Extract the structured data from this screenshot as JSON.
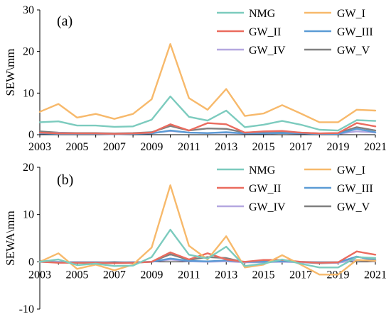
{
  "chart_data": [
    {
      "type": "line",
      "panel_label": "(a)",
      "ylabel": "SEW\\mm",
      "xlabel": "",
      "ylim": [
        0,
        30
      ],
      "yticks": [
        0,
        10,
        20,
        30
      ],
      "xticks": [
        2003,
        2005,
        2007,
        2009,
        2011,
        2013,
        2015,
        2017,
        2019,
        2021
      ],
      "legend_position": "top-right",
      "x": [
        2003,
        2004,
        2005,
        2006,
        2007,
        2008,
        2009,
        2010,
        2011,
        2012,
        2013,
        2014,
        2015,
        2016,
        2017,
        2018,
        2019,
        2020,
        2021
      ],
      "series": [
        {
          "name": "NMG",
          "color": "#7ccbbe",
          "values": [
            3.0,
            3.2,
            2.2,
            2.2,
            1.9,
            2.0,
            3.6,
            9.2,
            4.3,
            3.4,
            5.8,
            1.8,
            2.4,
            3.3,
            2.4,
            1.2,
            1.0,
            3.5,
            3.3
          ]
        },
        {
          "name": "GW_I",
          "color": "#f7b96b",
          "values": [
            5.5,
            7.4,
            4.1,
            5.0,
            3.8,
            5.0,
            8.5,
            21.8,
            8.8,
            6.0,
            11.0,
            4.5,
            5.1,
            7.1,
            5.1,
            3.0,
            3.0,
            6.0,
            5.8
          ]
        },
        {
          "name": "GW_II",
          "color": "#ea6b5e",
          "values": [
            0.5,
            0.3,
            0.3,
            0.3,
            0.2,
            0.3,
            0.5,
            2.5,
            1.0,
            2.8,
            2.5,
            0.5,
            0.8,
            0.9,
            0.5,
            0.3,
            0.4,
            2.8,
            2.0
          ]
        },
        {
          "name": "GW_III",
          "color": "#5b9bd5",
          "values": [
            0.3,
            0.2,
            0.2,
            0.2,
            0.1,
            0.2,
            0.3,
            1.0,
            0.5,
            0.4,
            0.6,
            0.3,
            0.3,
            0.4,
            0.3,
            0.2,
            0.2,
            1.4,
            0.6
          ]
        },
        {
          "name": "GW_IV",
          "color": "#b4a7e0",
          "values": [
            0.4,
            0.4,
            0.3,
            0.3,
            0.2,
            0.3,
            0.4,
            0.9,
            0.5,
            0.4,
            0.5,
            0.3,
            0.3,
            0.4,
            0.3,
            0.2,
            0.2,
            0.8,
            0.5
          ]
        },
        {
          "name": "GW_V",
          "color": "#808080",
          "values": [
            0.8,
            0.5,
            0.4,
            0.4,
            0.3,
            0.4,
            0.6,
            2.1,
            1.0,
            1.5,
            1.4,
            0.5,
            0.7,
            0.6,
            0.5,
            0.3,
            0.4,
            1.8,
            1.0
          ]
        }
      ]
    },
    {
      "type": "line",
      "panel_label": "(b)",
      "ylabel": "SEWA\\mm",
      "xlabel": "",
      "ylim": [
        -10,
        20
      ],
      "yticks": [
        -10,
        0,
        10,
        20
      ],
      "xticks": [
        2003,
        2005,
        2007,
        2009,
        2011,
        2013,
        2015,
        2017,
        2019,
        2021
      ],
      "legend_position": "top-right",
      "x": [
        2003,
        2004,
        2005,
        2006,
        2007,
        2008,
        2009,
        2010,
        2011,
        2012,
        2013,
        2014,
        2015,
        2016,
        2017,
        2018,
        2019,
        2020,
        2021
      ],
      "series": [
        {
          "name": "NMG",
          "color": "#7ccbbe",
          "values": [
            0.0,
            0.5,
            -0.7,
            -0.4,
            -0.9,
            -0.8,
            1.0,
            6.8,
            1.5,
            0.7,
            3.2,
            -0.9,
            -0.4,
            0.5,
            -0.4,
            -1.2,
            -1.2,
            1.0,
            0.8
          ]
        },
        {
          "name": "GW_I",
          "color": "#f7b96b",
          "values": [
            0.0,
            1.8,
            -1.5,
            -0.6,
            -1.8,
            -0.6,
            3.0,
            16.2,
            3.4,
            0.5,
            5.4,
            -1.2,
            -0.6,
            1.4,
            -0.6,
            -2.7,
            -2.7,
            0.4,
            0.2
          ]
        },
        {
          "name": "GW_II",
          "color": "#ea6b5e",
          "values": [
            0.0,
            -0.2,
            -0.2,
            -0.2,
            -0.3,
            -0.2,
            0.0,
            2.0,
            0.5,
            1.8,
            0.5,
            0.0,
            0.4,
            0.4,
            0.0,
            -0.2,
            -0.1,
            2.2,
            1.5
          ]
        },
        {
          "name": "GW_III",
          "color": "#5b9bd5",
          "values": [
            0.0,
            -0.1,
            -0.1,
            -0.1,
            -0.2,
            -0.1,
            0.0,
            0.7,
            0.2,
            0.1,
            0.3,
            0.0,
            0.0,
            0.1,
            0.0,
            -0.1,
            -0.1,
            1.1,
            0.3
          ]
        },
        {
          "name": "GW_IV",
          "color": "#b4a7e0",
          "values": [
            0.0,
            0.0,
            -0.1,
            -0.1,
            -0.2,
            -0.1,
            0.0,
            0.5,
            0.1,
            0.0,
            0.1,
            -0.1,
            -0.1,
            0.0,
            -0.1,
            -0.2,
            -0.2,
            0.4,
            0.1
          ]
        },
        {
          "name": "GW_V",
          "color": "#808080",
          "values": [
            0.2,
            -0.1,
            -0.2,
            -0.2,
            -0.3,
            -0.2,
            0.0,
            1.6,
            0.4,
            1.0,
            0.8,
            -0.1,
            0.2,
            0.1,
            -0.1,
            -0.3,
            -0.2,
            1.1,
            0.4
          ]
        }
      ]
    }
  ]
}
